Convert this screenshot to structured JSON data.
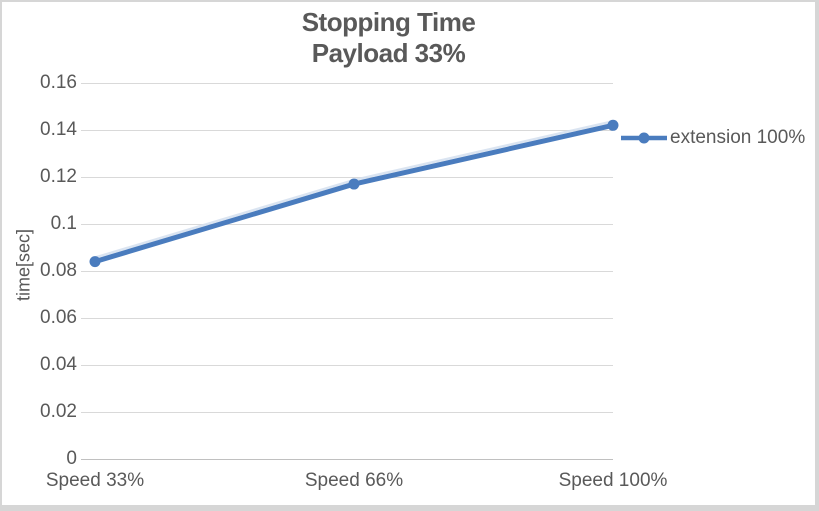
{
  "chart_data": {
    "type": "line",
    "title": "Stopping Time",
    "subtitle": "Payload 33%",
    "categories": [
      "Speed 33%",
      "Speed 66%",
      "Speed 100%"
    ],
    "series": [
      {
        "name": "extension 100%",
        "values": [
          0.084,
          0.117,
          0.142
        ]
      }
    ],
    "xlabel": "",
    "ylabel": "time[sec]",
    "ylim": [
      0,
      0.16
    ],
    "ytick_labels": [
      "0",
      "0.02",
      "0.04",
      "0.06",
      "0.08",
      "0.1",
      "0.12",
      "0.14",
      "0.16"
    ],
    "grid": true,
    "legend_position": "right",
    "colors": {
      "series_line": "#4a7cbe",
      "gridline": "#d9d9d9",
      "axis_line": "#c0c0c0",
      "text": "#595959"
    }
  }
}
